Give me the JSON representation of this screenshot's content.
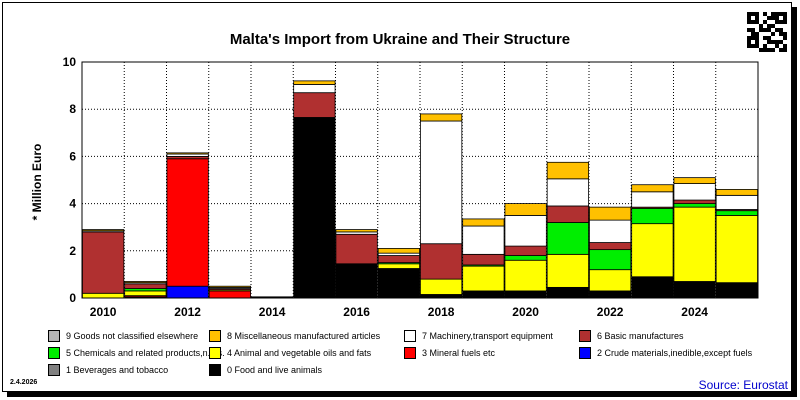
{
  "header": {
    "title": "Malta's Import from Ukraine and Their Structure"
  },
  "footer": {
    "date": "2.4.2026",
    "source": "Source: Eurostat"
  },
  "chart_data": {
    "type": "bar",
    "stacked": true,
    "title": "Malta's Import from Ukraine and Their Structure",
    "ylabel": "* Million Euro",
    "ylim": [
      0,
      10
    ],
    "yticks": [
      "0",
      "2",
      "4",
      "6",
      "8",
      "10"
    ],
    "grid": true,
    "legend_position": "bottom",
    "x": [
      2010,
      2011,
      2012,
      2013,
      2014,
      2015,
      2016,
      2017,
      2018,
      2019,
      2020,
      2021,
      2022,
      2023,
      2024,
      2025
    ],
    "xtick_labels": [
      "2010",
      "2012",
      "2014",
      "2016",
      "2018",
      "2020",
      "2022",
      "2024"
    ],
    "series": [
      {
        "name": "0 Food and live animals",
        "color": "#000000",
        "values": [
          0,
          0.05,
          0,
          0,
          0.05,
          7.65,
          1.45,
          1.25,
          0.15,
          0.3,
          0.3,
          0.45,
          0.3,
          0.9,
          0.7,
          0.65
        ]
      },
      {
        "name": "1 Beverages and tobacco",
        "color": "#808080",
        "values": [
          0,
          0,
          0,
          0,
          0,
          0,
          0,
          0,
          0,
          0,
          0,
          0,
          0,
          0,
          0,
          0
        ]
      },
      {
        "name": "2 Crude materials,inedible,except fuels",
        "color": "#0000ff",
        "values": [
          0,
          0,
          0.5,
          0,
          0,
          0,
          0,
          0,
          0,
          0,
          0,
          0,
          0,
          0,
          0,
          0
        ]
      },
      {
        "name": "3 Mineral fuels etc",
        "color": "#ff0000",
        "values": [
          0,
          0.05,
          5.4,
          0.3,
          0,
          0,
          0,
          0,
          0,
          0,
          0,
          0,
          0,
          0,
          0,
          0
        ]
      },
      {
        "name": "4 Animal and vegetable oils and fats",
        "color": "#ffff00",
        "values": [
          0.2,
          0.2,
          0,
          0.05,
          0,
          0,
          0,
          0.2,
          0.65,
          1.05,
          1.3,
          1.4,
          0.9,
          2.25,
          3.15,
          2.85
        ]
      },
      {
        "name": "5 Chemicals and related products,n.e.s.",
        "color": "#00ee00",
        "values": [
          0,
          0.1,
          0,
          0,
          0,
          0,
          0,
          0.05,
          0,
          0.05,
          0.2,
          1.35,
          0.85,
          0.65,
          0.15,
          0.2
        ]
      },
      {
        "name": "6 Basic manufactures",
        "color": "#b03030",
        "values": [
          2.6,
          0.2,
          0.1,
          0.05,
          0,
          1.05,
          1.25,
          0.3,
          1.5,
          0.45,
          0.4,
          0.7,
          0.3,
          0.05,
          0.15,
          0.05
        ]
      },
      {
        "name": "7 Machinery,transport equipment",
        "color": "#ffffff",
        "values": [
          0.05,
          0.05,
          0.1,
          0.05,
          0,
          0.35,
          0.1,
          0.1,
          5.2,
          1.2,
          1.3,
          1.15,
          0.95,
          0.65,
          0.7,
          0.6
        ]
      },
      {
        "name": "8 Miscellaneous manufactured articles",
        "color": "#ffc000",
        "values": [
          0.05,
          0.05,
          0.05,
          0.05,
          0,
          0.15,
          0.1,
          0.2,
          0.3,
          0.3,
          0.5,
          0.7,
          0.55,
          0.3,
          0.25,
          0.25
        ]
      },
      {
        "name": "9 Goods not classified elsewhere",
        "color": "#b4b4b4",
        "values": [
          0,
          0,
          0,
          0,
          0,
          0,
          0,
          0,
          0,
          0,
          0,
          0,
          0,
          0,
          0,
          0
        ]
      }
    ],
    "legend_rows": [
      [
        "9 Goods not classified elsewhere",
        "8 Miscellaneous manufactured articles",
        "7 Machinery,transport equipment",
        "6 Basic manufactures"
      ],
      [
        "5 Chemicals and related products,n.e.s.",
        "4 Animal and vegetable oils and fats",
        "3 Mineral fuels etc",
        "2 Crude materials,inedible,except fuels"
      ],
      [
        "1 Beverages and tobacco",
        "0 Food and live animals"
      ]
    ]
  }
}
